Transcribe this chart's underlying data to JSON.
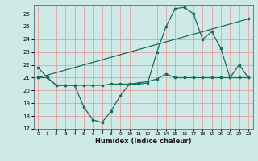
{
  "xlabel": "Humidex (Indice chaleur)",
  "xlim": [
    -0.5,
    23.5
  ],
  "ylim": [
    17,
    26.7
  ],
  "yticks": [
    17,
    18,
    19,
    20,
    21,
    22,
    23,
    24,
    25,
    26
  ],
  "xticks": [
    0,
    1,
    2,
    3,
    4,
    5,
    6,
    7,
    8,
    9,
    10,
    11,
    12,
    13,
    14,
    15,
    16,
    17,
    18,
    19,
    20,
    21,
    22,
    23
  ],
  "background_color": "#ceeae7",
  "grid_color": "#e8a0a0",
  "line_color": "#1a6b5e",
  "line1_x": [
    0,
    1,
    2,
    3,
    4,
    5,
    6,
    7,
    8,
    9,
    10,
    11,
    12,
    13,
    14,
    15,
    16,
    17,
    18,
    19,
    20,
    21,
    22,
    23
  ],
  "line1_y": [
    21.8,
    21.0,
    20.4,
    20.4,
    20.4,
    18.7,
    17.7,
    17.5,
    18.4,
    19.6,
    20.5,
    20.5,
    20.6,
    23.0,
    25.0,
    26.4,
    26.5,
    26.0,
    24.0,
    24.6,
    23.3,
    21.0,
    22.0,
    21.0
  ],
  "line2_x": [
    0,
    1,
    2,
    3,
    4,
    5,
    6,
    7,
    8,
    9,
    10,
    11,
    12,
    13,
    14,
    15,
    16,
    17,
    18,
    19,
    20,
    21,
    22,
    23
  ],
  "line2_y": [
    21.0,
    21.0,
    20.4,
    20.4,
    20.4,
    20.4,
    20.4,
    20.4,
    20.5,
    20.5,
    20.5,
    20.6,
    20.7,
    20.9,
    21.3,
    21.0,
    21.0,
    21.0,
    21.0,
    21.0,
    21.0,
    21.0,
    21.0,
    21.0
  ],
  "line3_x": [
    0,
    23
  ],
  "line3_y": [
    21.0,
    25.6
  ]
}
